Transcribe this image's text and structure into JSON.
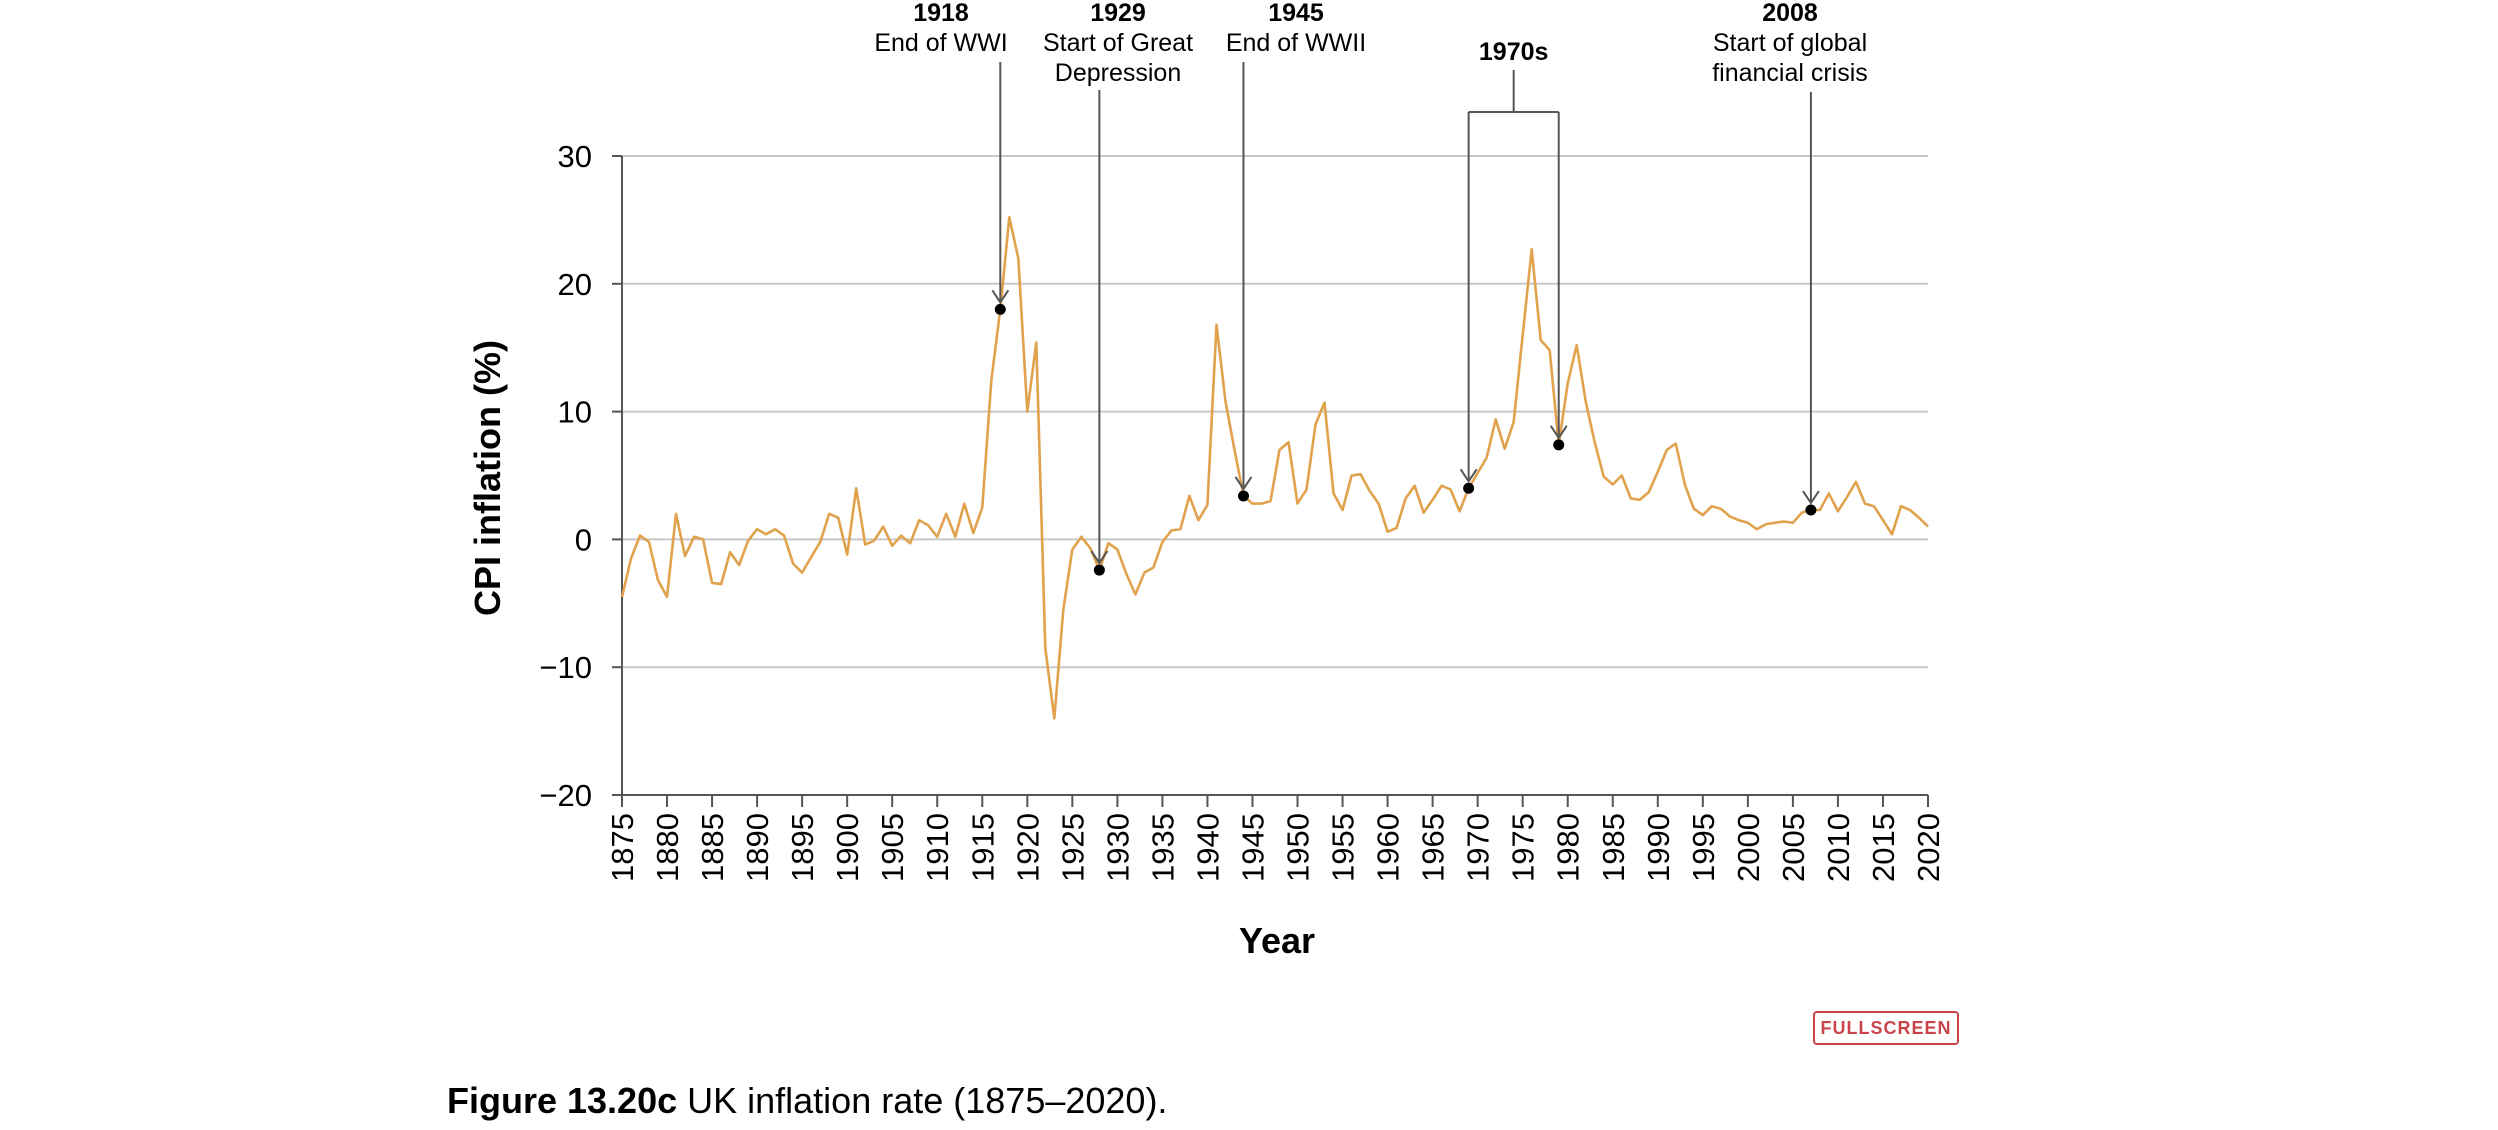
{
  "caption": {
    "label": "Figure 13.20c",
    "text": " UK inflation rate (1875–2020)."
  },
  "fullscreen_label": "FULLSCREEN",
  "colors": {
    "line": "#e0a24d",
    "grid": "#c8c8c8",
    "axis": "#555555",
    "annotation": "#555555",
    "button": "#c9454b"
  },
  "chart_data": {
    "type": "line",
    "xlabel": "Year",
    "ylabel": "CPI inflation (%)",
    "xlim": [
      1875,
      2020
    ],
    "ylim": [
      -20,
      30
    ],
    "x_ticks": [
      1875,
      1880,
      1885,
      1890,
      1895,
      1900,
      1905,
      1910,
      1915,
      1920,
      1925,
      1930,
      1935,
      1940,
      1945,
      1950,
      1955,
      1960,
      1965,
      1970,
      1975,
      1980,
      1985,
      1990,
      1995,
      2000,
      2005,
      2010,
      2015,
      2020
    ],
    "y_ticks": [
      -20,
      -10,
      0,
      10,
      20,
      30
    ],
    "y_tick_labels": [
      "−20",
      "−10",
      "0",
      "10",
      "20",
      "30"
    ],
    "grid": "horizontal",
    "series": [
      {
        "x": [
          1875,
          1876,
          1877,
          1878,
          1879,
          1880,
          1881,
          1882,
          1883,
          1884,
          1885,
          1886,
          1887,
          1888,
          1889,
          1890,
          1891,
          1892,
          1893,
          1894,
          1895,
          1896,
          1897,
          1898,
          1899,
          1900,
          1901,
          1902,
          1903,
          1904,
          1905,
          1906,
          1907,
          1908,
          1909,
          1910,
          1911,
          1912,
          1913,
          1914,
          1915,
          1916,
          1917,
          1918,
          1919,
          1920,
          1921,
          1922,
          1923,
          1924,
          1925,
          1926,
          1927,
          1928,
          1929,
          1930,
          1931,
          1932,
          1933,
          1934,
          1935,
          1936,
          1937,
          1938,
          1939,
          1940,
          1941,
          1942,
          1943,
          1944,
          1945,
          1946,
          1947,
          1948,
          1949,
          1950,
          1951,
          1952,
          1953,
          1954,
          1955,
          1956,
          1957,
          1958,
          1959,
          1960,
          1961,
          1962,
          1963,
          1964,
          1965,
          1966,
          1967,
          1968,
          1969,
          1970,
          1971,
          1972,
          1973,
          1974,
          1975,
          1976,
          1977,
          1978,
          1979,
          1980,
          1981,
          1982,
          1983,
          1984,
          1985,
          1986,
          1987,
          1988,
          1989,
          1990,
          1991,
          1992,
          1993,
          1994,
          1995,
          1996,
          1997,
          1998,
          1999,
          2000,
          2001,
          2002,
          2003,
          2004,
          2005,
          2006,
          2007,
          2008,
          2009,
          2010,
          2011,
          2012,
          2013,
          2014,
          2015,
          2016,
          2017,
          2018,
          2019,
          2020
        ],
        "values": [
          -4.5,
          -1.5,
          0.3,
          -0.2,
          -3.2,
          -4.5,
          2.0,
          -1.3,
          0.2,
          0.0,
          -3.4,
          -3.5,
          -1.0,
          -2.0,
          -0.1,
          0.8,
          0.4,
          0.8,
          0.3,
          -1.9,
          -2.6,
          -1.4,
          -0.2,
          2.0,
          1.7,
          -1.2,
          4.0,
          -0.4,
          -0.1,
          1.0,
          -0.5,
          0.3,
          -0.3,
          1.5,
          1.1,
          0.2,
          2.0,
          0.2,
          2.8,
          0.5,
          2.5,
          12.4,
          18.0,
          25.2,
          22.0,
          10.0,
          15.4,
          -8.5,
          -14.0,
          -5.5,
          -0.8,
          0.2,
          -0.7,
          -2.4,
          -0.3,
          -0.8,
          -2.7,
          -4.3,
          -2.6,
          -2.2,
          -0.2,
          0.7,
          0.8,
          3.4,
          1.5,
          2.7,
          16.8,
          10.8,
          7.0,
          3.4,
          2.8,
          2.8,
          3.0,
          7.0,
          7.6,
          2.8,
          3.9,
          9.0,
          10.7,
          3.6,
          2.3,
          5.0,
          5.1,
          3.8,
          2.8,
          0.6,
          0.9,
          3.2,
          4.2,
          2.1,
          3.1,
          4.2,
          3.9,
          2.2,
          4.0,
          5.2,
          6.4,
          9.4,
          7.1,
          9.2,
          16.0,
          22.7,
          15.6,
          14.8,
          7.4,
          12.2,
          15.2,
          10.8,
          7.6,
          4.9,
          4.3,
          5.0,
          3.2,
          3.1,
          3.7,
          5.3,
          7.0,
          7.5,
          4.3,
          2.4,
          1.9,
          2.6,
          2.4,
          1.8,
          1.5,
          1.3,
          0.8,
          1.2,
          1.3,
          1.4,
          1.3,
          2.1,
          2.3,
          2.3,
          3.6,
          2.2,
          3.3,
          4.5,
          2.8,
          2.6,
          1.5,
          0.4,
          2.6,
          2.3,
          1.7,
          1.0
        ]
      }
    ],
    "markers": [
      {
        "x": 1917,
        "y": 18.0
      },
      {
        "x": 1928,
        "y": -2.4
      },
      {
        "x": 1944,
        "y": 3.4
      },
      {
        "x": 1969,
        "y": 4.0
      },
      {
        "x": 1979,
        "y": 7.4
      },
      {
        "x": 2007,
        "y": 2.3
      }
    ],
    "annotations": [
      {
        "year": "1918",
        "lines": [
          "End of WWI"
        ]
      },
      {
        "year": "1929",
        "lines": [
          "Start of Great",
          "Depression"
        ]
      },
      {
        "year": "1945",
        "lines": [
          "End of WWII"
        ]
      },
      {
        "year": "1970s",
        "lines": []
      },
      {
        "year": "2008",
        "lines": [
          "Start of global",
          "financial crisis"
        ]
      }
    ]
  }
}
